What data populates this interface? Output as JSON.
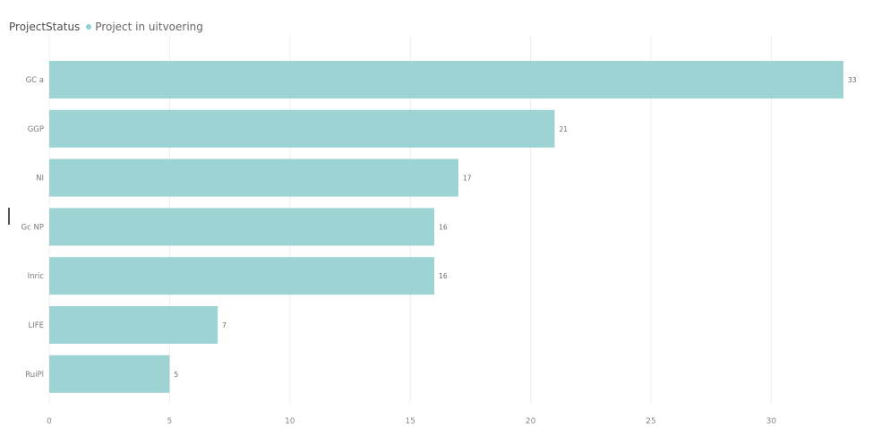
{
  "legend": {
    "title": "ProjectStatus",
    "series_label": "Project in uitvoering"
  },
  "colors": {
    "bar": "#9dd3d3",
    "legend_dot": "#8fcfcf"
  },
  "chart_data": {
    "type": "bar",
    "orientation": "horizontal",
    "title": "",
    "xlabel": "",
    "ylabel": "",
    "categories": [
      "GC a",
      "GGP",
      "NI",
      "Gc NP",
      "Inric",
      "LIFE",
      "RuiPl"
    ],
    "series": [
      {
        "name": "Project in uitvoering",
        "values": [
          33,
          21,
          17,
          16,
          16,
          7,
          5
        ]
      }
    ],
    "data_labels": [
      "33",
      "21",
      "17",
      "16",
      "16",
      "7",
      "5"
    ],
    "x_ticks": [
      0,
      5,
      10,
      15,
      20,
      25,
      30
    ],
    "xlim": [
      0,
      35
    ],
    "grid": true,
    "legend_position": "top-left"
  }
}
